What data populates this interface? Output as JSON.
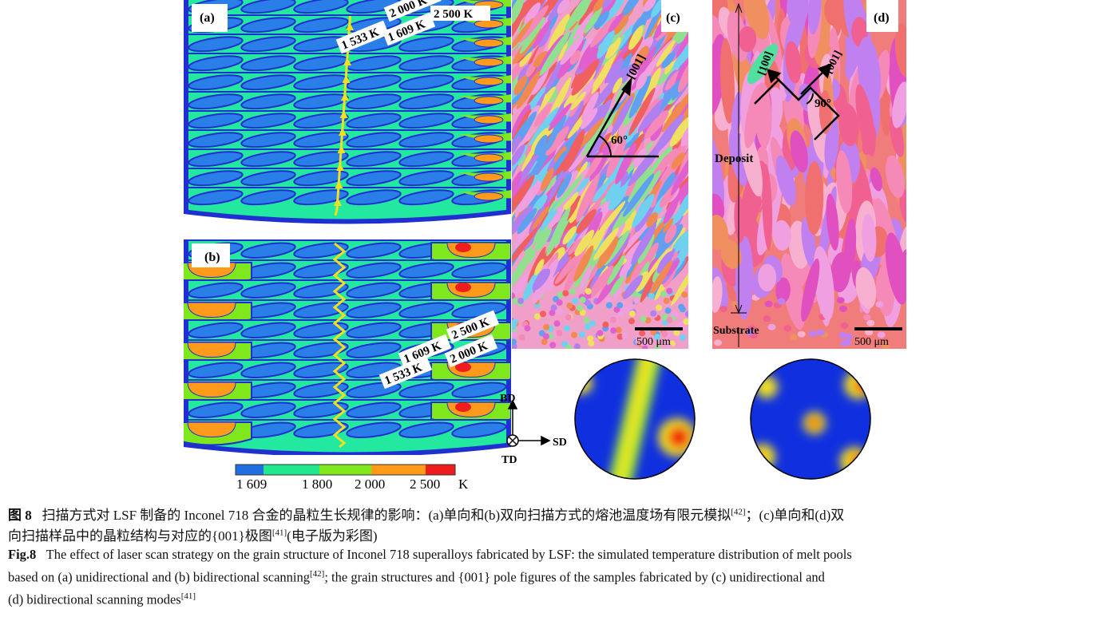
{
  "panels": {
    "a": {
      "label": "(a)",
      "isotherms": [
        "2 000 K",
        "2 500 K",
        "1 609 K",
        "1 533 K"
      ]
    },
    "b": {
      "label": "(b)",
      "isotherms": [
        "1 609 K",
        "2 500 K",
        "2 000 K",
        "1 533 K"
      ]
    },
    "c": {
      "label": "(c)",
      "direction": "[001]",
      "angle": "60°",
      "scale": "500 μm"
    },
    "d": {
      "label": "(d)",
      "direction1": "[100]",
      "direction2": "[001]",
      "angle": "90°",
      "deposit": "Deposit",
      "substrate": "Substrate",
      "scale": "500 μm"
    }
  },
  "colorbar": {
    "ticks": [
      "1 609",
      "1 800",
      "2 000",
      "2 500"
    ],
    "unit": "K",
    "colors": [
      "#1f6fe0",
      "#22e88c",
      "#7ee81c",
      "#ff9a1a",
      "#ee1c1c"
    ]
  },
  "axes": {
    "bd": "BD",
    "sd": "SD",
    "td": "TD"
  },
  "caption": {
    "cn_label": "图 8",
    "cn_line1": "扫描方式对 LSF 制备的 Inconel 718 合金的晶粒生长规律的影响：(a)单向和(b)双向扫描方式的熔池温度场有限元模拟",
    "cn_ref1": "[42]",
    "cn_line1b": "；(c)单向和(d)双",
    "cn_line2": "向扫描样品中的晶粒结构与对应的{001}极图",
    "cn_ref2": "[41]",
    "cn_line2b": "(电子版为彩图)",
    "en_label": "Fig.8",
    "en_line1": "The effect of laser scan strategy on the grain structure of Inconel 718 superalloys fabricated by LSF: the simulated temperature distribution of melt pools",
    "en_line2": "based on (a) unidirectional and (b) bidirectional scanning",
    "en_ref1": "[42]",
    "en_line2b": "; the grain structures and {001} pole figures of the samples fabricated by (c) unidirectional and",
    "en_line3": "(d) bidirectional scanning modes",
    "en_ref2": "[41]"
  }
}
